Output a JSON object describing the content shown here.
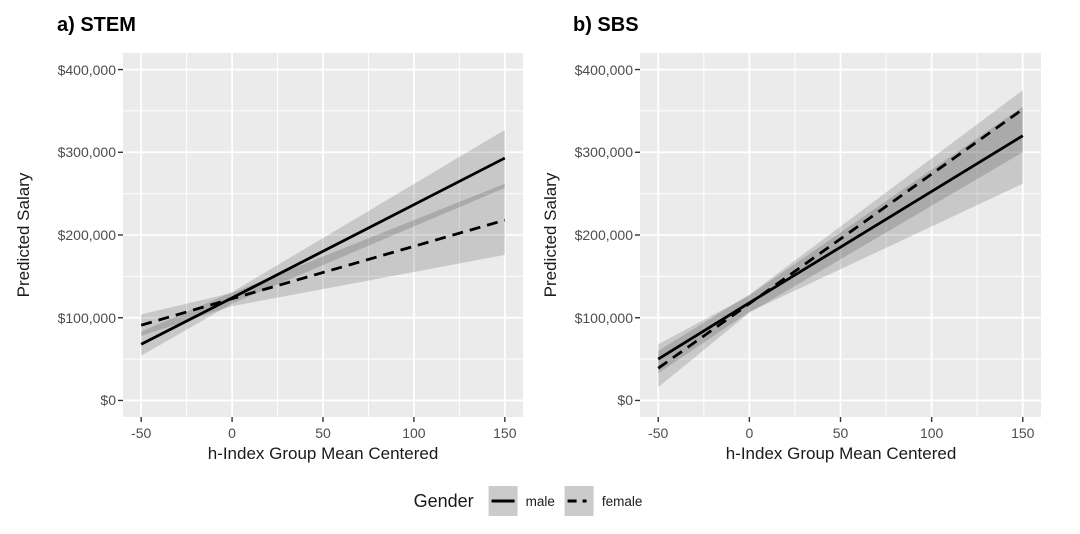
{
  "figure": {
    "background": "#ffffff",
    "panel_background": "#ebebeb",
    "grid_color": "#ffffff",
    "ribbon_color": "#000000",
    "ribbon_opacity": 0.15,
    "line_color": "#000000",
    "tick_mark_color": "#333333",
    "tick_label_color": "#4d4d4d"
  },
  "legend": {
    "title": "Gender",
    "position": "bottom-center",
    "key_background": "#cbcbcb",
    "items": [
      {
        "label": "male",
        "line_style": "solid"
      },
      {
        "label": "female",
        "line_style": "dashed"
      }
    ]
  },
  "chart_data": [
    {
      "type": "line",
      "title": "a) STEM",
      "xlabel": "h-Index Group Mean Centered",
      "ylabel": "Predicted Salary",
      "xlim": [
        -60,
        160
      ],
      "ylim": [
        -20000,
        420000
      ],
      "grid": true,
      "x_ticks": [
        -50,
        0,
        50,
        100,
        150
      ],
      "x_tick_labels": [
        "-50",
        "0",
        "50",
        "100",
        "150"
      ],
      "x_minor_ticks": [
        -25,
        25,
        75,
        125
      ],
      "y_ticks": [
        0,
        100000,
        200000,
        300000,
        400000
      ],
      "y_tick_labels": [
        "$0",
        "$100,000",
        "$200,000",
        "$300,000",
        "$400,000"
      ],
      "y_minor_ticks": [
        50000,
        150000,
        250000,
        350000
      ],
      "series": [
        {
          "name": "male",
          "style": "solid",
          "x": [
            -50,
            0,
            150
          ],
          "y": [
            68000,
            124000,
            293000
          ],
          "ci_lower": [
            54000,
            117000,
            257000
          ],
          "ci_upper": [
            83000,
            131000,
            327000
          ]
        },
        {
          "name": "female",
          "style": "dashed",
          "x": [
            -50,
            0,
            150
          ],
          "y": [
            91000,
            123000,
            218000
          ],
          "ci_lower": [
            78000,
            114000,
            176000
          ],
          "ci_upper": [
            104000,
            130000,
            262000
          ]
        }
      ]
    },
    {
      "type": "line",
      "title": "b) SBS",
      "xlabel": "h-Index Group Mean Centered",
      "ylabel": "Predicted Salary",
      "xlim": [
        -60,
        160
      ],
      "ylim": [
        -20000,
        420000
      ],
      "grid": true,
      "x_ticks": [
        -50,
        0,
        50,
        100,
        150
      ],
      "x_tick_labels": [
        "-50",
        "0",
        "50",
        "100",
        "150"
      ],
      "x_minor_ticks": [
        -25,
        25,
        75,
        125
      ],
      "y_ticks": [
        0,
        100000,
        200000,
        300000,
        400000
      ],
      "y_tick_labels": [
        "$0",
        "$100,000",
        "$200,000",
        "$300,000",
        "$400,000"
      ],
      "y_minor_ticks": [
        50000,
        150000,
        250000,
        350000
      ],
      "series": [
        {
          "name": "male",
          "style": "solid",
          "x": [
            -50,
            0,
            150
          ],
          "y": [
            50000,
            118000,
            320000
          ],
          "ci_lower": [
            33000,
            107000,
            262000
          ],
          "ci_upper": [
            68000,
            127000,
            355000
          ]
        },
        {
          "name": "female",
          "style": "dashed",
          "x": [
            -50,
            0,
            150
          ],
          "y": [
            39000,
            117000,
            352000
          ],
          "ci_lower": [
            16000,
            106000,
            300000
          ],
          "ci_upper": [
            60000,
            128000,
            375000
          ]
        }
      ]
    }
  ]
}
